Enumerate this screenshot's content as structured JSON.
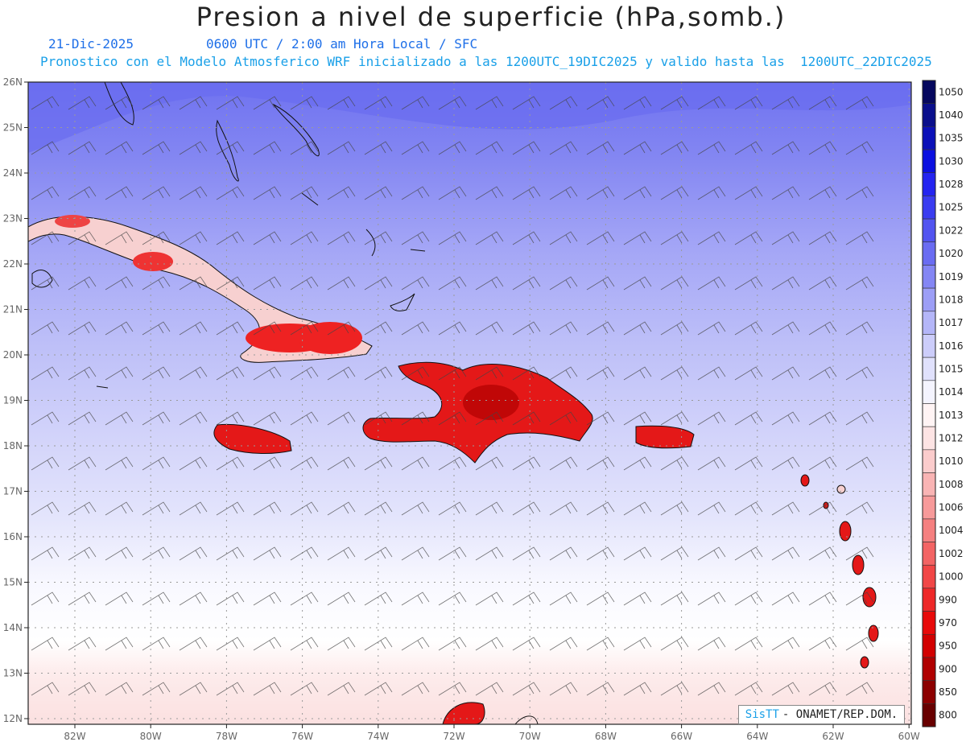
{
  "title": "Presion a nivel de superficie (hPa,somb.)",
  "date": "21-Dic-2025",
  "time_line": "0600 UTC / 2:00 am Hora Local / SFC",
  "description": "Pronostico con el Modelo Atmosferico WRF inicializado a las 1200UTC_19DIC2025 y valido hasta las  1200UTC_22DIC2025",
  "credit": {
    "brand": "SisTT",
    "text": "- ONAMET/REP.DOM."
  },
  "axes": {
    "lon_labels": [
      "82W",
      "80W",
      "78W",
      "76W",
      "74W",
      "72W",
      "70W",
      "68W",
      "66W",
      "64W",
      "62W",
      "60W"
    ],
    "lat_labels": [
      "26N",
      "25N",
      "24N",
      "23N",
      "22N",
      "21N",
      "20N",
      "19N",
      "18N",
      "17N",
      "16N",
      "15N",
      "14N",
      "13N",
      "12N"
    ]
  },
  "colorbar": {
    "labels": [
      "1050",
      "1040",
      "1035",
      "1030",
      "1028",
      "1025",
      "1022",
      "1020",
      "1019",
      "1018",
      "1017",
      "1016",
      "1015",
      "1014",
      "1013",
      "1012",
      "1010",
      "1008",
      "1006",
      "1004",
      "1002",
      "1000",
      "990",
      "970",
      "950",
      "900",
      "850",
      "800"
    ],
    "colors": [
      "#06085e",
      "#0a0f8c",
      "#0b10b8",
      "#0b10e0",
      "#2424f0",
      "#3a3cf0",
      "#5254f0",
      "#6a6cf2",
      "#8486f4",
      "#9c9ef6",
      "#b4b6f8",
      "#cccdfa",
      "#e0e1fc",
      "#f4f4fe",
      "#fff4f4",
      "#fde4e4",
      "#fbcccc",
      "#f9b4b4",
      "#f79a9a",
      "#f58080",
      "#f36464",
      "#f14646",
      "#ee2828",
      "#e80a0a",
      "#d20000",
      "#b00000",
      "#8c0000",
      "#680000"
    ]
  },
  "colors": {
    "accent_blue": "#1e6fe8",
    "sub_blue": "#1aa0e8",
    "grid": "#9a9a9a"
  }
}
